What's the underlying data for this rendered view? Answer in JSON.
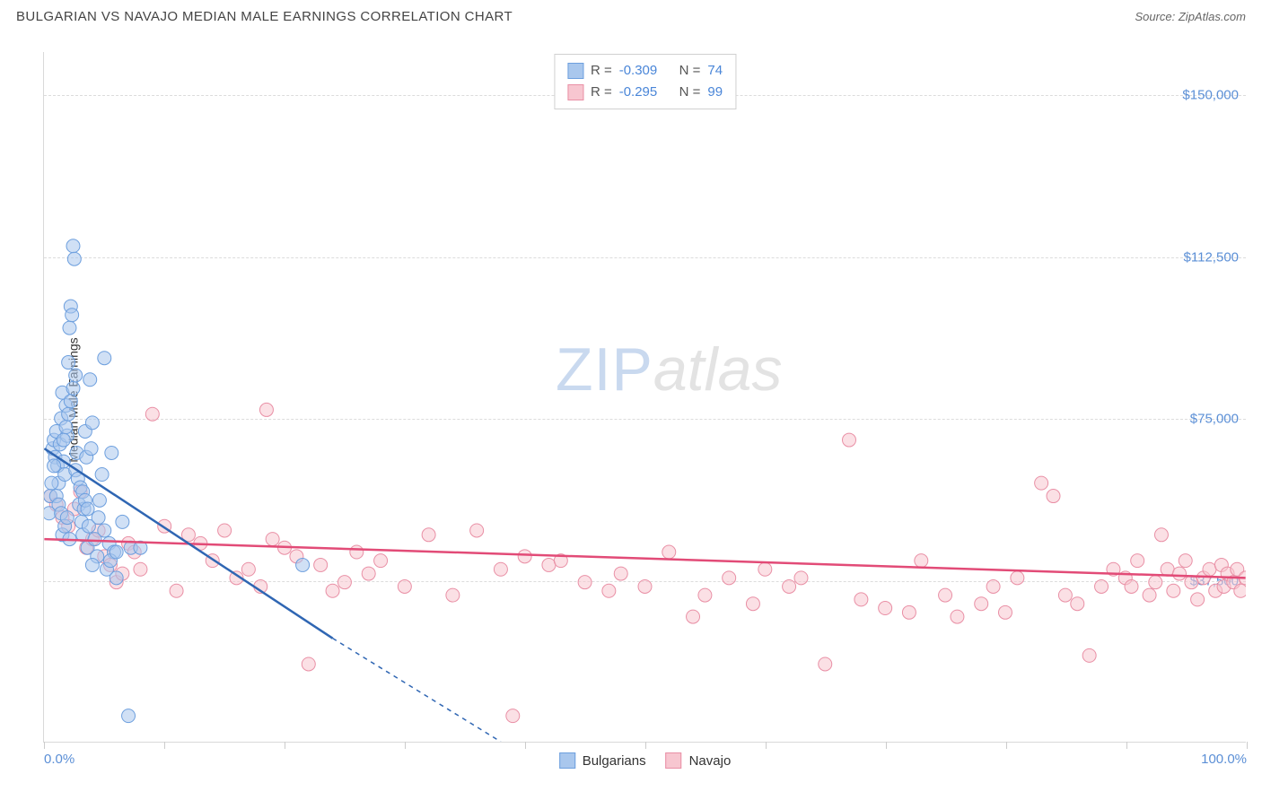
{
  "header": {
    "title": "BULGARIAN VS NAVAJO MEDIAN MALE EARNINGS CORRELATION CHART",
    "source_label": "Source: ",
    "source_name": "ZipAtlas.com"
  },
  "watermark": {
    "zip": "ZIP",
    "atlas": "atlas"
  },
  "chart": {
    "type": "scatter",
    "ylabel": "Median Male Earnings",
    "xlim": [
      0,
      100
    ],
    "ylim": [
      0,
      160000
    ],
    "yticks": [
      {
        "v": 37500,
        "label": "$37,500"
      },
      {
        "v": 75000,
        "label": "$75,000"
      },
      {
        "v": 112500,
        "label": "$112,500"
      },
      {
        "v": 150000,
        "label": "$150,000"
      }
    ],
    "xticks_major": [
      0,
      10,
      20,
      30,
      40,
      50,
      60,
      70,
      80,
      90,
      100
    ],
    "xtick_labels": [
      {
        "v": 0,
        "label": "0.0%"
      },
      {
        "v": 100,
        "label": "100.0%"
      }
    ],
    "background_color": "#ffffff",
    "grid_color": "#dcdcdc",
    "axis_color": "#d9d9d9",
    "marker_radius": 7.5,
    "marker_opacity": 0.55,
    "series": {
      "bulgarians": {
        "label": "Bulgarians",
        "fill_color": "#a9c7ed",
        "stroke_color": "#6d9fde",
        "line_color": "#2f66b3",
        "R": "-0.309",
        "N": "74",
        "regression": {
          "x1": 0,
          "y1": 68000,
          "x2": 24,
          "y2": 24000,
          "dash_to_x": 38,
          "dash_to_y": 0
        },
        "points": [
          [
            0.4,
            53000
          ],
          [
            0.5,
            57000
          ],
          [
            0.7,
            68000
          ],
          [
            0.8,
            70000
          ],
          [
            0.9,
            66000
          ],
          [
            1.0,
            72000
          ],
          [
            1.1,
            64000
          ],
          [
            1.2,
            60000
          ],
          [
            1.3,
            69000
          ],
          [
            1.4,
            75000
          ],
          [
            1.5,
            81000
          ],
          [
            1.6,
            65000
          ],
          [
            1.7,
            62000
          ],
          [
            1.8,
            78000
          ],
          [
            1.9,
            71000
          ],
          [
            2.0,
            88000
          ],
          [
            2.1,
            96000
          ],
          [
            2.2,
            101000
          ],
          [
            2.3,
            99000
          ],
          [
            2.4,
            115000
          ],
          [
            2.5,
            112000
          ],
          [
            2.6,
            63000
          ],
          [
            2.7,
            67000
          ],
          [
            2.8,
            61000
          ],
          [
            2.9,
            55000
          ],
          [
            3.0,
            59000
          ],
          [
            3.1,
            51000
          ],
          [
            3.2,
            48000
          ],
          [
            3.3,
            54000
          ],
          [
            3.4,
            72000
          ],
          [
            3.5,
            66000
          ],
          [
            3.6,
            45000
          ],
          [
            3.7,
            50000
          ],
          [
            3.8,
            84000
          ],
          [
            3.9,
            68000
          ],
          [
            4.0,
            74000
          ],
          [
            4.2,
            47000
          ],
          [
            4.4,
            43000
          ],
          [
            4.6,
            56000
          ],
          [
            4.8,
            62000
          ],
          [
            5.0,
            89000
          ],
          [
            5.2,
            40000
          ],
          [
            5.4,
            46000
          ],
          [
            5.6,
            67000
          ],
          [
            5.8,
            44000
          ],
          [
            6.0,
            38000
          ],
          [
            6.5,
            51000
          ],
          [
            7.0,
            6000
          ],
          [
            7.2,
            45000
          ],
          [
            1.0,
            57000
          ],
          [
            1.2,
            55000
          ],
          [
            1.4,
            53000
          ],
          [
            1.6,
            70000
          ],
          [
            1.8,
            73000
          ],
          [
            2.0,
            76000
          ],
          [
            2.2,
            79000
          ],
          [
            2.4,
            82000
          ],
          [
            2.6,
            85000
          ],
          [
            0.8,
            64000
          ],
          [
            0.6,
            60000
          ],
          [
            3.2,
            58000
          ],
          [
            3.4,
            56000
          ],
          [
            3.6,
            54000
          ],
          [
            4.0,
            41000
          ],
          [
            4.5,
            52000
          ],
          [
            5.0,
            49000
          ],
          [
            5.5,
            42000
          ],
          [
            6.0,
            44000
          ],
          [
            8.0,
            45000
          ],
          [
            21.5,
            41000
          ],
          [
            1.5,
            48000
          ],
          [
            1.7,
            50000
          ],
          [
            1.9,
            52000
          ],
          [
            2.1,
            47000
          ]
        ]
      },
      "navajo": {
        "label": "Navajo",
        "fill_color": "#f7c6d0",
        "stroke_color": "#e98fa5",
        "line_color": "#e24b77",
        "R": "-0.295",
        "N": "99",
        "regression": {
          "x1": 0,
          "y1": 47000,
          "x2": 100,
          "y2": 38000
        },
        "points": [
          [
            0.5,
            57000
          ],
          [
            1.0,
            55000
          ],
          [
            1.5,
            52000
          ],
          [
            2.0,
            50000
          ],
          [
            2.5,
            54000
          ],
          [
            3.0,
            58000
          ],
          [
            3.5,
            45000
          ],
          [
            4.0,
            47000
          ],
          [
            4.5,
            49000
          ],
          [
            5.0,
            43000
          ],
          [
            5.5,
            41000
          ],
          [
            6.0,
            37000
          ],
          [
            6.5,
            39000
          ],
          [
            7.0,
            46000
          ],
          [
            7.5,
            44000
          ],
          [
            8.0,
            40000
          ],
          [
            9.0,
            76000
          ],
          [
            10.0,
            50000
          ],
          [
            11.0,
            35000
          ],
          [
            12.0,
            48000
          ],
          [
            13.0,
            46000
          ],
          [
            14.0,
            42000
          ],
          [
            15.0,
            49000
          ],
          [
            16.0,
            38000
          ],
          [
            17.0,
            40000
          ],
          [
            18.0,
            36000
          ],
          [
            18.5,
            77000
          ],
          [
            19.0,
            47000
          ],
          [
            20.0,
            45000
          ],
          [
            21.0,
            43000
          ],
          [
            22.0,
            18000
          ],
          [
            23.0,
            41000
          ],
          [
            24.0,
            35000
          ],
          [
            25.0,
            37000
          ],
          [
            26.0,
            44000
          ],
          [
            27.0,
            39000
          ],
          [
            28.0,
            42000
          ],
          [
            30.0,
            36000
          ],
          [
            32.0,
            48000
          ],
          [
            34.0,
            34000
          ],
          [
            36.0,
            49000
          ],
          [
            38.0,
            40000
          ],
          [
            39.0,
            6000
          ],
          [
            40.0,
            43000
          ],
          [
            42.0,
            41000
          ],
          [
            43.0,
            42000
          ],
          [
            45.0,
            37000
          ],
          [
            47.0,
            35000
          ],
          [
            48.0,
            39000
          ],
          [
            50.0,
            36000
          ],
          [
            52.0,
            44000
          ],
          [
            54.0,
            29000
          ],
          [
            55.0,
            34000
          ],
          [
            57.0,
            38000
          ],
          [
            59.0,
            32000
          ],
          [
            60.0,
            40000
          ],
          [
            62.0,
            36000
          ],
          [
            63.0,
            38000
          ],
          [
            65.0,
            18000
          ],
          [
            67.0,
            70000
          ],
          [
            68.0,
            33000
          ],
          [
            70.0,
            31000
          ],
          [
            72.0,
            30000
          ],
          [
            73.0,
            42000
          ],
          [
            75.0,
            34000
          ],
          [
            76.0,
            29000
          ],
          [
            78.0,
            32000
          ],
          [
            79.0,
            36000
          ],
          [
            80.0,
            30000
          ],
          [
            81.0,
            38000
          ],
          [
            83.0,
            60000
          ],
          [
            84.0,
            57000
          ],
          [
            85.0,
            34000
          ],
          [
            86.0,
            32000
          ],
          [
            87.0,
            20000
          ],
          [
            88.0,
            36000
          ],
          [
            89.0,
            40000
          ],
          [
            90.0,
            38000
          ],
          [
            90.5,
            36000
          ],
          [
            91.0,
            42000
          ],
          [
            92.0,
            34000
          ],
          [
            92.5,
            37000
          ],
          [
            93.0,
            48000
          ],
          [
            93.5,
            40000
          ],
          [
            94.0,
            35000
          ],
          [
            94.5,
            39000
          ],
          [
            95.0,
            42000
          ],
          [
            95.5,
            37000
          ],
          [
            96.0,
            33000
          ],
          [
            96.5,
            38000
          ],
          [
            97.0,
            40000
          ],
          [
            97.5,
            35000
          ],
          [
            98.0,
            41000
          ],
          [
            98.2,
            36000
          ],
          [
            98.5,
            39000
          ],
          [
            99.0,
            37000
          ],
          [
            99.3,
            40000
          ],
          [
            99.6,
            35000
          ],
          [
            100.0,
            38000
          ]
        ]
      }
    }
  },
  "legend_stats": {
    "r_prefix": "R = ",
    "n_prefix": "N = "
  }
}
